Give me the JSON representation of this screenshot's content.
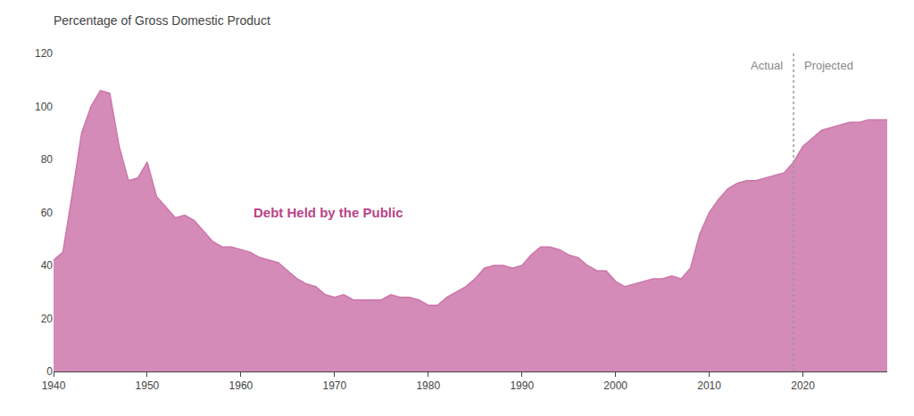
{
  "chart_data": {
    "type": "area",
    "title": "Percentage of Gross Domestic Product",
    "annotations": [
      {
        "text": "Debt Held by the Public"
      },
      {
        "text": "Actual"
      },
      {
        "text": "Projected"
      }
    ],
    "divider_x": 2019,
    "color": "#CC77AA",
    "grid": false,
    "xlim": [
      1940,
      2029
    ],
    "xticks": [
      1940,
      1950,
      1960,
      1970,
      1980,
      1990,
      2000,
      2010,
      2020
    ],
    "ylim": [
      0,
      120
    ],
    "yticks": [
      0,
      20,
      40,
      60,
      80,
      100,
      120
    ],
    "x": [
      1940,
      1941,
      1942,
      1943,
      1944,
      1945,
      1946,
      1947,
      1948,
      1949,
      1950,
      1951,
      1952,
      1953,
      1954,
      1955,
      1956,
      1957,
      1958,
      1959,
      1960,
      1961,
      1962,
      1963,
      1964,
      1965,
      1966,
      1967,
      1968,
      1969,
      1970,
      1971,
      1972,
      1973,
      1974,
      1975,
      1976,
      1977,
      1978,
      1979,
      1980,
      1981,
      1982,
      1983,
      1984,
      1985,
      1986,
      1987,
      1988,
      1989,
      1990,
      1991,
      1992,
      1993,
      1994,
      1995,
      1996,
      1997,
      1998,
      1999,
      2000,
      2001,
      2002,
      2003,
      2004,
      2005,
      2006,
      2007,
      2008,
      2009,
      2010,
      2011,
      2012,
      2013,
      2014,
      2015,
      2016,
      2017,
      2018,
      2019,
      2020,
      2021,
      2022,
      2023,
      2024,
      2025,
      2026,
      2027,
      2028,
      2029
    ],
    "values": [
      42,
      45,
      67,
      90,
      100,
      106,
      105,
      85,
      72,
      73,
      79,
      66,
      62,
      58,
      59,
      57,
      53,
      49,
      47,
      47,
      46,
      45,
      43,
      42,
      41,
      38,
      35,
      33,
      32,
      29,
      28,
      29,
      27,
      27,
      27,
      27,
      29,
      28,
      28,
      27,
      25,
      25,
      28,
      30,
      32,
      35,
      39,
      40,
      40,
      39,
      40,
      44,
      47,
      47,
      46,
      44,
      43,
      40,
      38,
      38,
      34,
      32,
      33,
      34,
      35,
      35,
      36,
      35,
      39,
      52,
      60,
      65,
      69,
      71,
      72,
      72,
      73,
      74,
      75,
      79,
      85,
      88,
      91,
      92,
      93,
      94,
      94,
      95,
      95,
      95
    ]
  }
}
